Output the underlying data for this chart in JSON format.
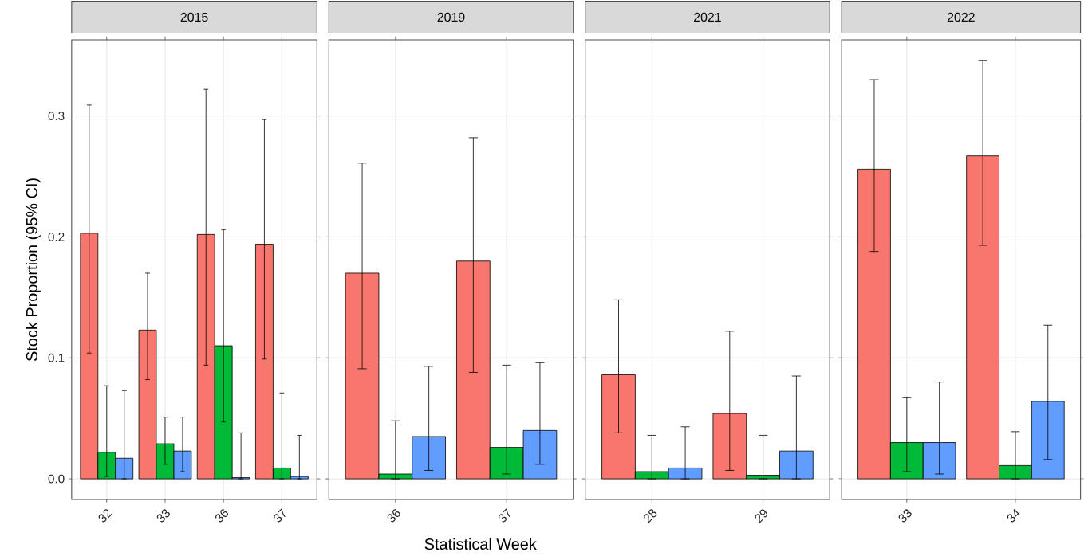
{
  "chart_data": [
    {
      "type": "bar",
      "title": "2015",
      "ylabel": "Stock Proportion (95% CI)",
      "categories": [
        "32",
        "33",
        "36",
        "37"
      ],
      "series": [
        {
          "color": "#f8766d",
          "values": [
            0.203,
            0.123,
            0.202,
            0.194
          ],
          "errors": [
            [
              0.104,
              0.309
            ],
            [
              0.082,
              0.17
            ],
            [
              0.094,
              0.322
            ],
            [
              0.099,
              0.297
            ]
          ]
        },
        {
          "color": "#00ba38",
          "values": [
            0.022,
            0.029,
            0.11,
            0.009
          ],
          "errors": [
            [
              0.002,
              0.077
            ],
            [
              0.012,
              0.051
            ],
            [
              0.047,
              0.206
            ],
            [
              0.0,
              0.071
            ]
          ]
        },
        {
          "color": "#619cff",
          "values": [
            0.017,
            0.023,
            0.001,
            0.002
          ],
          "errors": [
            [
              0.0,
              0.073
            ],
            [
              0.006,
              0.051
            ],
            [
              0.0,
              0.038
            ],
            [
              0.0,
              0.036
            ]
          ]
        }
      ],
      "ylim": [
        -0.017,
        0.363
      ],
      "yticks": [
        {
          "value": 0,
          "label": "0.0"
        },
        0.1,
        0.2,
        0.3
      ],
      "grid": true
    },
    {
      "type": "bar",
      "title": "2019",
      "xlabel": "Statistical Week",
      "categories": [
        "36",
        "37"
      ],
      "series": [
        {
          "color": "#f8766d",
          "values": [
            0.17,
            0.18
          ],
          "errors": [
            [
              0.091,
              0.261
            ],
            [
              0.088,
              0.282
            ]
          ]
        },
        {
          "color": "#00ba38",
          "values": [
            0.004,
            0.026
          ],
          "errors": [
            [
              0.0,
              0.048
            ],
            [
              0.004,
              0.094
            ]
          ]
        },
        {
          "color": "#619cff",
          "values": [
            0.035,
            0.04
          ],
          "errors": [
            [
              0.007,
              0.093
            ],
            [
              0.012,
              0.096
            ]
          ]
        }
      ],
      "ylim": [
        -0.017,
        0.363
      ],
      "yticks": [
        0,
        0.1,
        0.2,
        0.3
      ],
      "grid": true,
      "tick_labels": "x"
    },
    {
      "type": "bar",
      "title": "2021",
      "categories": [
        "28",
        "29"
      ],
      "series": [
        {
          "color": "#f8766d",
          "values": [
            0.086,
            0.054
          ],
          "errors": [
            [
              0.038,
              0.148
            ],
            [
              0.007,
              0.122
            ]
          ]
        },
        {
          "color": "#00ba38",
          "values": [
            0.006,
            0.003
          ],
          "errors": [
            [
              0.0,
              0.036
            ],
            [
              0.0,
              0.036
            ]
          ]
        },
        {
          "color": "#619cff",
          "values": [
            0.009,
            0.023
          ],
          "errors": [
            [
              0.0,
              0.043
            ],
            [
              0.0,
              0.085
            ]
          ]
        }
      ],
      "ylim": [
        -0.017,
        0.363
      ],
      "yticks": [
        0,
        0.1,
        0.2,
        0.3
      ],
      "grid": true,
      "tick_labels": "x"
    },
    {
      "type": "bar",
      "title": "2022",
      "categories": [
        "33",
        "34"
      ],
      "series": [
        {
          "color": "#f8766d",
          "values": [
            0.256,
            0.267
          ],
          "errors": [
            [
              0.188,
              0.33
            ],
            [
              0.193,
              0.346
            ]
          ]
        },
        {
          "color": "#00ba38",
          "values": [
            0.03,
            0.011
          ],
          "errors": [
            [
              0.006,
              0.067
            ],
            [
              0.0,
              0.039
            ]
          ]
        },
        {
          "color": "#619cff",
          "values": [
            0.03,
            0.064
          ],
          "errors": [
            [
              0.004,
              0.08
            ],
            [
              0.016,
              0.127
            ]
          ]
        }
      ],
      "ylim": [
        -0.017,
        0.363
      ],
      "yticks": [
        0,
        0.1,
        0.2,
        0.3
      ],
      "grid": true,
      "tick_labels": "x"
    }
  ]
}
